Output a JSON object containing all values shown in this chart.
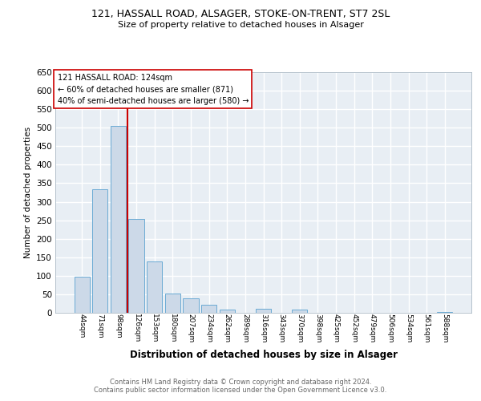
{
  "title1": "121, HASSALL ROAD, ALSAGER, STOKE-ON-TRENT, ST7 2SL",
  "title2": "Size of property relative to detached houses in Alsager",
  "xlabel": "Distribution of detached houses by size in Alsager",
  "ylabel": "Number of detached properties",
  "bar_color": "#ccd9e8",
  "bar_edge_color": "#6aaad4",
  "bg_color": "#e8eef4",
  "grid_color": "#ffffff",
  "vline_color": "#cc0000",
  "categories": [
    "44sqm",
    "71sqm",
    "98sqm",
    "126sqm",
    "153sqm",
    "180sqm",
    "207sqm",
    "234sqm",
    "262sqm",
    "289sqm",
    "316sqm",
    "343sqm",
    "370sqm",
    "398sqm",
    "425sqm",
    "452sqm",
    "479sqm",
    "506sqm",
    "534sqm",
    "561sqm",
    "588sqm"
  ],
  "values": [
    97,
    333,
    505,
    253,
    138,
    53,
    38,
    22,
    8,
    0,
    10,
    0,
    8,
    0,
    0,
    0,
    0,
    0,
    0,
    0,
    3
  ],
  "ylim": [
    0,
    650
  ],
  "yticks": [
    0,
    50,
    100,
    150,
    200,
    250,
    300,
    350,
    400,
    450,
    500,
    550,
    600,
    650
  ],
  "vline_x": 2.5,
  "annotation_line1": "121 HASSALL ROAD: 124sqm",
  "annotation_line2": "← 60% of detached houses are smaller (871)",
  "annotation_line3": "40% of semi-detached houses are larger (580) →",
  "footer1": "Contains HM Land Registry data © Crown copyright and database right 2024.",
  "footer2": "Contains public sector information licensed under the Open Government Licence v3.0."
}
